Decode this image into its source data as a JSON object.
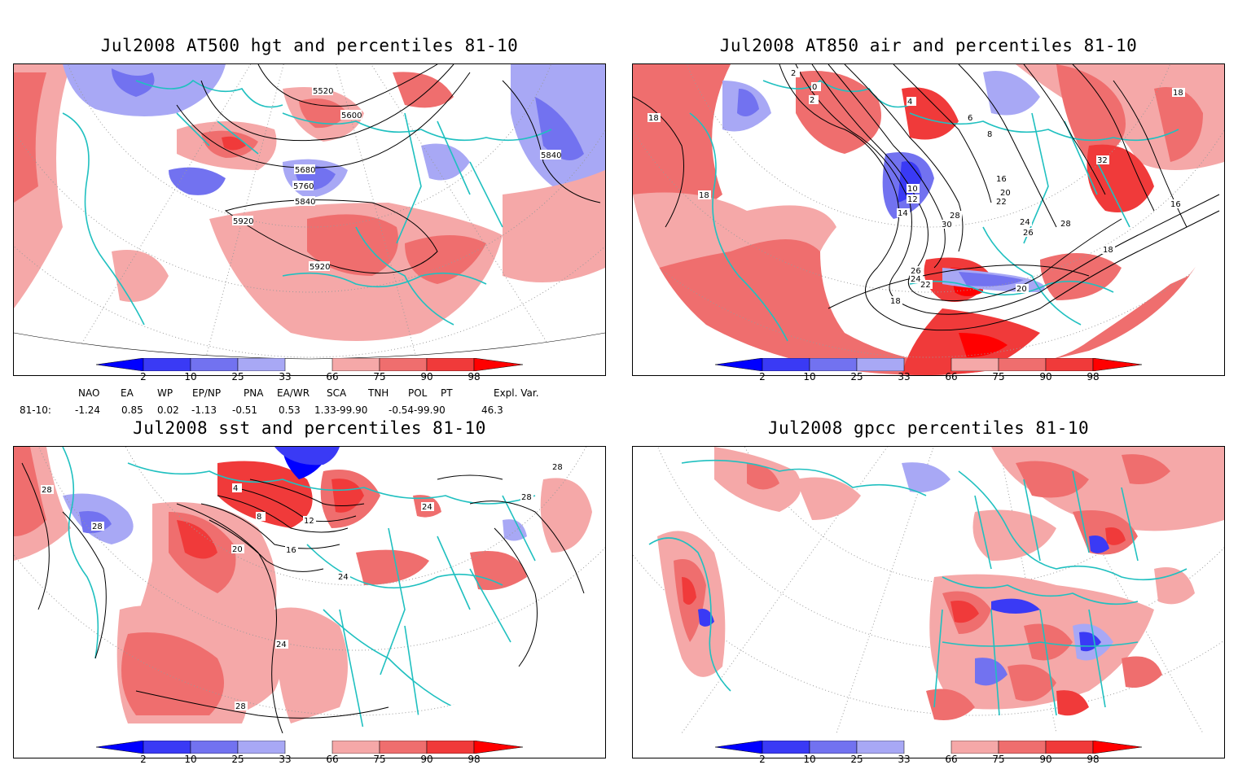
{
  "panels": [
    {
      "id": "hgt500",
      "title": "Jul2008 AT500 hgt and percentiles 81-10",
      "contour_labels": [
        "5520",
        "5600",
        "5680",
        "5760",
        "5840",
        "5920",
        "5920",
        "5840"
      ]
    },
    {
      "id": "air850",
      "title": "Jul2008 AT850 air and percentiles 81-10",
      "contour_labels": [
        "2",
        "0",
        "2",
        "4",
        "6",
        "8",
        "10",
        "12",
        "14",
        "16",
        "18",
        "20",
        "22",
        "24",
        "26",
        "28",
        "30",
        "32",
        "18",
        "16",
        "18",
        "18",
        "20",
        "24",
        "26",
        "22",
        "18",
        "28"
      ]
    },
    {
      "id": "sst",
      "title": "Jul2008 sst and percentiles 81-10",
      "contour_labels": [
        "28",
        "28",
        "24",
        "20",
        "16",
        "12",
        "8",
        "4",
        "24",
        "24",
        "28",
        "28",
        "28"
      ]
    },
    {
      "id": "gpcc",
      "title": "Jul2008 gpcc percentiles 81-10",
      "contour_labels": []
    }
  ],
  "colorbar": {
    "ticks": [
      "2",
      "10",
      "25",
      "33",
      "66",
      "75",
      "90",
      "98"
    ],
    "colors": {
      "c2": "#0000ff",
      "c10": "#3a3af5",
      "c25": "#7272f0",
      "c33": "#a8a8f5",
      "mid": "#ffffff",
      "c66": "#f5a8a8",
      "c75": "#ef6e6e",
      "c90": "#f03a3a",
      "c98": "#ff0000"
    }
  },
  "indices": {
    "headers": [
      "NAO",
      "EA",
      "WP",
      "EP/NP",
      "PNA",
      "EA/WR",
      "SCA",
      "TNH",
      "POL",
      "PT",
      "Expl. Var."
    ],
    "row_label": "81-10:",
    "values": [
      "-1.24",
      "0.85",
      "0.02",
      "-1.13",
      "-0.51",
      "0.53",
      "1.33-99.90",
      "-0.54-99.90",
      "46.3"
    ]
  },
  "colors": {
    "coast": "#20c0c0",
    "contour": "#000000",
    "grid": "#9a9a9a"
  }
}
